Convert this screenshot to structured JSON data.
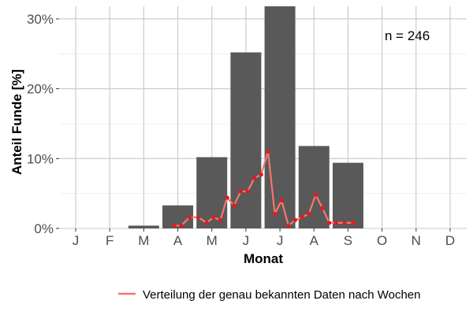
{
  "chart_data": {
    "type": "bar",
    "categories": [
      "J",
      "F",
      "M",
      "A",
      "M",
      "J",
      "J",
      "A",
      "S",
      "O",
      "N",
      "D"
    ],
    "values": [
      0,
      0,
      0.4,
      3.3,
      10.2,
      25.2,
      31.8,
      11.8,
      9.4,
      0,
      0,
      0
    ],
    "ylim": [
      0,
      31.8
    ],
    "y_ticks": [
      0,
      10,
      20,
      30
    ],
    "y_tick_labels": [
      "0%",
      "10%",
      "20%",
      "30%"
    ],
    "xlabel": "Monat",
    "ylabel": "Anteil Funde [%]",
    "annotation": "n = 246",
    "grid": true,
    "bar_color": "#595959",
    "line_series": {
      "name": "Verteilung der genau bekannten Daten nach Wochen",
      "color": "#F8766D",
      "point_color": "#E41A1C",
      "x": [
        3.9,
        4.1,
        4.35,
        4.6,
        4.85,
        5.05,
        5.25,
        5.45,
        5.65,
        5.85,
        6.05,
        6.25,
        6.45,
        6.65,
        6.85,
        7.05,
        7.25,
        7.45,
        7.65,
        7.85,
        8.05,
        8.25,
        8.45,
        8.65,
        8.9,
        9.15
      ],
      "y": [
        0.4,
        0.4,
        1.6,
        1.6,
        0.8,
        1.6,
        1.2,
        4.4,
        3.3,
        5.3,
        5.3,
        7.2,
        7.7,
        11.0,
        2.1,
        4.0,
        0.4,
        1.2,
        1.6,
        2.1,
        4.8,
        2.9,
        0.8,
        0.8,
        0.8,
        0.8
      ]
    },
    "legend_position": "bottom"
  }
}
